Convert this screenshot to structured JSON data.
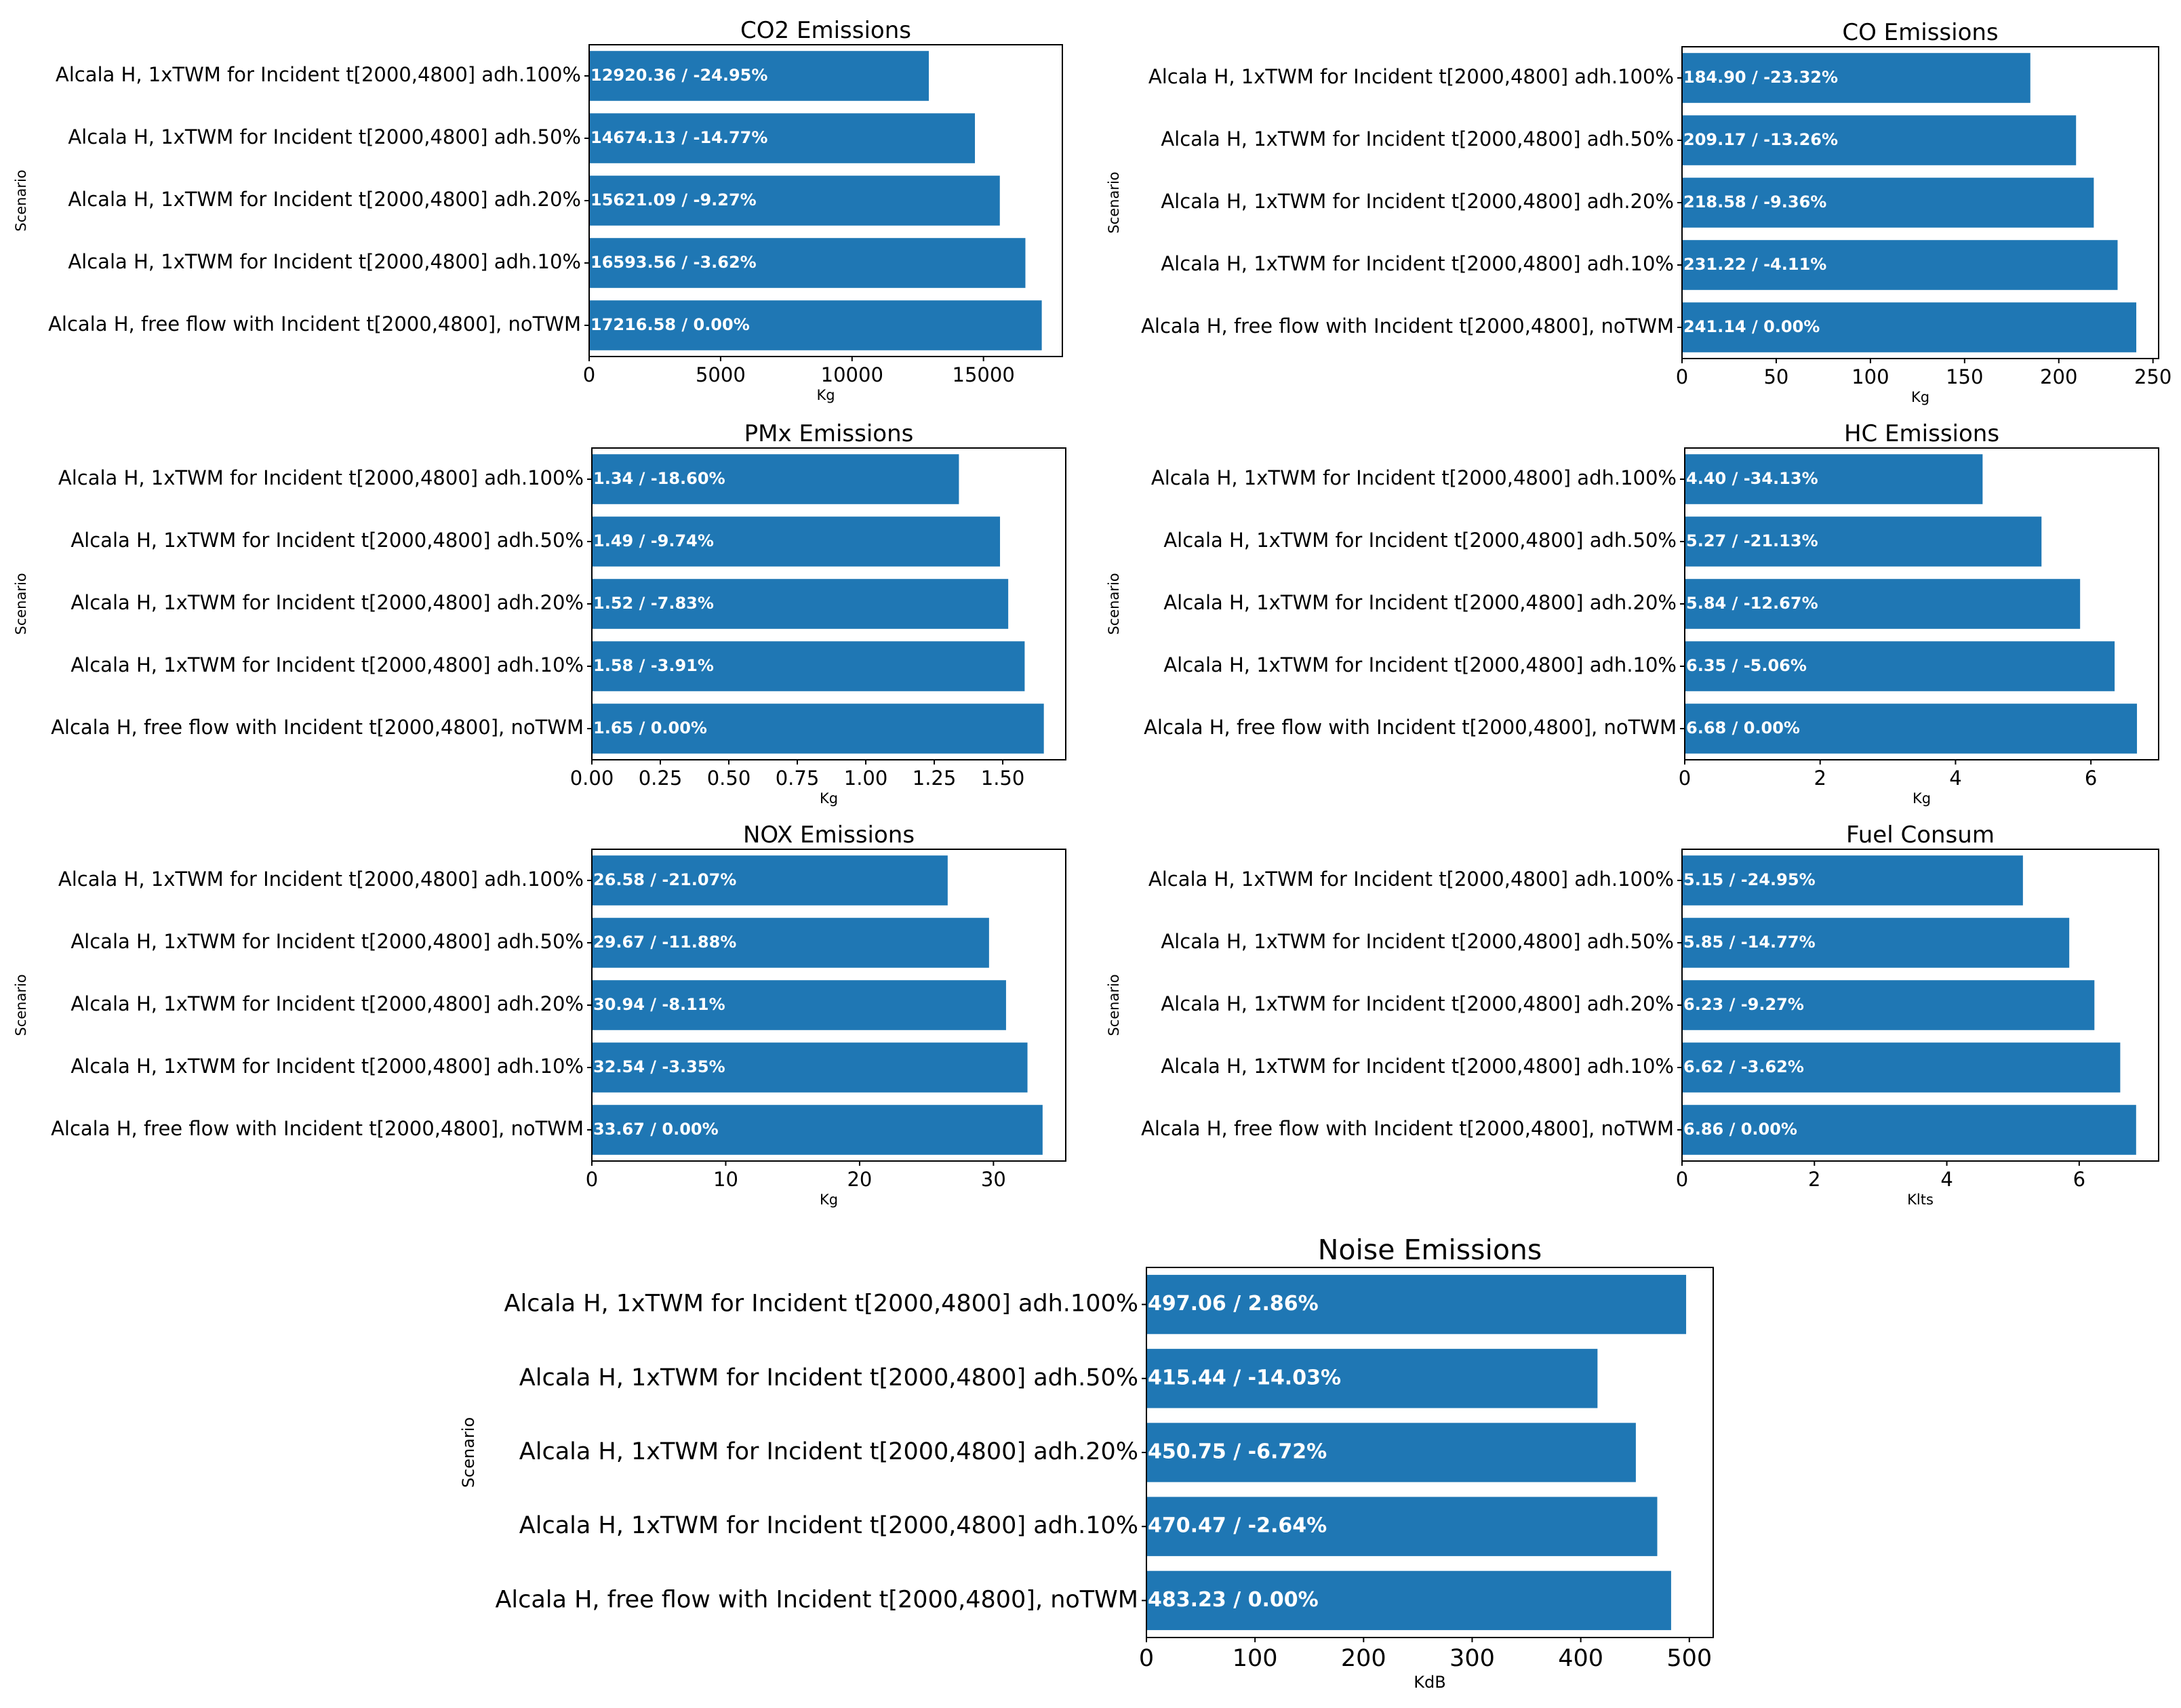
{
  "colors": {
    "bar": "#1f77b4",
    "label": "#ffffff",
    "axis": "#000000"
  },
  "scenarios": [
    "Alcala H, 1xTWM for Incident t[2000,4800] adh.100%",
    "Alcala H, 1xTWM for Incident t[2000,4800] adh.50%",
    "Alcala H, 1xTWM for Incident t[2000,4800] adh.20%",
    "Alcala H, 1xTWM for Incident t[2000,4800] adh.10%",
    "Alcala H, free flow with Incident t[2000,4800], noTWM"
  ],
  "chart_data": [
    {
      "id": "co2",
      "type": "bar",
      "orientation": "horizontal",
      "title": "CO2 Emissions",
      "xlabel": "Kg",
      "ylabel": "Scenario",
      "xlim": [
        0,
        18000
      ],
      "xticks": [
        0,
        5000,
        10000,
        15000
      ],
      "xtick_labels": [
        "0",
        "5000",
        "10000",
        "15000"
      ],
      "values": [
        12920.36,
        14674.13,
        15621.09,
        16593.56,
        17216.58
      ],
      "bar_labels": [
        "12920.36 / -24.95%",
        "14674.13 / -14.77%",
        "15621.09 / -9.27%",
        "16593.56 / -3.62%",
        "17216.58 / 0.00%"
      ]
    },
    {
      "id": "co",
      "type": "bar",
      "orientation": "horizontal",
      "title": "CO Emissions",
      "xlabel": "Kg",
      "ylabel": "Scenario",
      "xlim": [
        0,
        253
      ],
      "xticks": [
        0,
        50,
        100,
        150,
        200,
        250
      ],
      "xtick_labels": [
        "0",
        "50",
        "100",
        "150",
        "200",
        "250"
      ],
      "values": [
        184.9,
        209.17,
        218.58,
        231.22,
        241.14
      ],
      "bar_labels": [
        "184.90 / -23.32%",
        "209.17 / -13.26%",
        "218.58 / -9.36%",
        "231.22 / -4.11%",
        "241.14 / 0.00%"
      ]
    },
    {
      "id": "pmx",
      "type": "bar",
      "orientation": "horizontal",
      "title": "PMx Emissions",
      "xlabel": "Kg",
      "ylabel": "Scenario",
      "xlim": [
        0,
        1.73
      ],
      "xticks": [
        0,
        0.25,
        0.5,
        0.75,
        1.0,
        1.25,
        1.5
      ],
      "xtick_labels": [
        "0.00",
        "0.25",
        "0.50",
        "0.75",
        "1.00",
        "1.25",
        "1.50"
      ],
      "values": [
        1.34,
        1.49,
        1.52,
        1.58,
        1.65
      ],
      "bar_labels": [
        "1.34 / -18.60%",
        "1.49 / -9.74%",
        "1.52 / -7.83%",
        "1.58 / -3.91%",
        "1.65 / 0.00%"
      ]
    },
    {
      "id": "hc",
      "type": "bar",
      "orientation": "horizontal",
      "title": "HC Emissions",
      "xlabel": "Kg",
      "ylabel": "Scenario",
      "xlim": [
        0,
        7.0
      ],
      "xticks": [
        0,
        2,
        4,
        6
      ],
      "xtick_labels": [
        "0",
        "2",
        "4",
        "6"
      ],
      "values": [
        4.4,
        5.27,
        5.84,
        6.35,
        6.68
      ],
      "bar_labels": [
        "4.40 / -34.13%",
        "5.27 / -21.13%",
        "5.84 / -12.67%",
        "6.35 / -5.06%",
        "6.68 / 0.00%"
      ]
    },
    {
      "id": "nox",
      "type": "bar",
      "orientation": "horizontal",
      "title": "NOX Emissions",
      "xlabel": "Kg",
      "ylabel": "Scenario",
      "xlim": [
        0,
        35.4
      ],
      "xticks": [
        0,
        10,
        20,
        30
      ],
      "xtick_labels": [
        "0",
        "10",
        "20",
        "30"
      ],
      "values": [
        26.58,
        29.67,
        30.94,
        32.54,
        33.67
      ],
      "bar_labels": [
        "26.58 / -21.07%",
        "29.67 / -11.88%",
        "30.94 / -8.11%",
        "32.54 / -3.35%",
        "33.67 / 0.00%"
      ]
    },
    {
      "id": "fuel",
      "type": "bar",
      "orientation": "horizontal",
      "title": "Fuel Consum",
      "xlabel": "Klts",
      "ylabel": "Scenario",
      "xlim": [
        0,
        7.2
      ],
      "xticks": [
        0,
        2,
        4,
        6
      ],
      "xtick_labels": [
        "0",
        "2",
        "4",
        "6"
      ],
      "values": [
        5.15,
        5.85,
        6.23,
        6.62,
        6.86
      ],
      "bar_labels": [
        "5.15 / -24.95%",
        "5.85 / -14.77%",
        "6.23 / -9.27%",
        "6.62 / -3.62%",
        "6.86 / 0.00%"
      ]
    },
    {
      "id": "noise",
      "type": "bar",
      "orientation": "horizontal",
      "title": "Noise Emissions",
      "xlabel": "KdB",
      "ylabel": "Scenario",
      "xlim": [
        0,
        522
      ],
      "xticks": [
        0,
        100,
        200,
        300,
        400,
        500
      ],
      "xtick_labels": [
        "0",
        "100",
        "200",
        "300",
        "400",
        "500"
      ],
      "values": [
        497.06,
        415.44,
        450.75,
        470.47,
        483.23
      ],
      "bar_labels": [
        "497.06 / 2.86%",
        "415.44 / -14.03%",
        "450.75 / -6.72%",
        "470.47 / -2.64%",
        "483.23 / 0.00%"
      ]
    }
  ]
}
